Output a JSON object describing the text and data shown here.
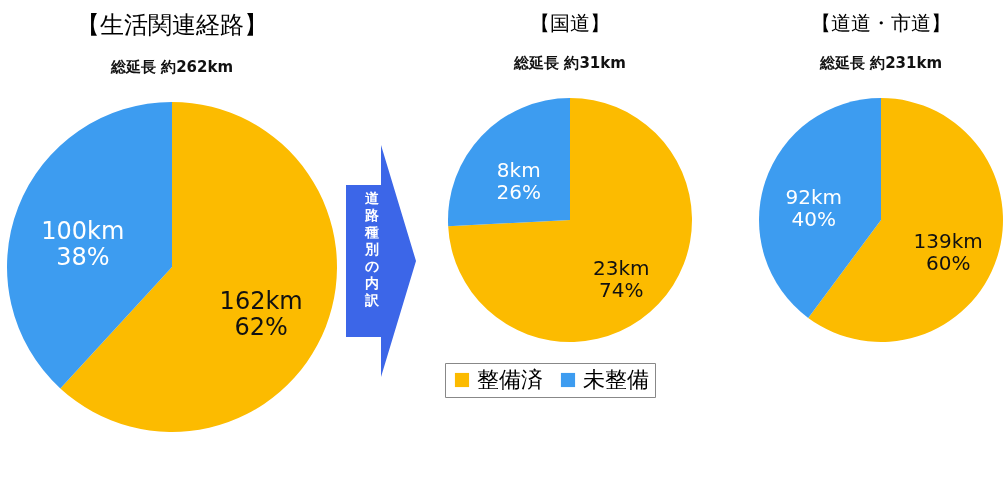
{
  "chart_data": [
    {
      "type": "pie",
      "title": "【生活関連経路】",
      "subtitle": "総延長  約262km",
      "categories": [
        null,
        null
      ],
      "values": [
        162,
        100
      ],
      "colors": [
        "#fcbb00",
        "#3d9cf0"
      ],
      "value_labels": [
        "162km\n62%",
        "100km\n38%"
      ],
      "annotations": [
        "道路種別の内訳"
      ]
    },
    {
      "type": "pie",
      "title": "【国道】",
      "subtitle": "総延長  約31km",
      "categories": [
        "整備済",
        "未整備"
      ],
      "values": [
        23,
        8
      ],
      "colors": [
        "#fcbb00",
        "#3d9cf0"
      ],
      "value_labels": [
        "23km\n74%",
        "8km\n26%"
      ],
      "legend": "bottom"
    },
    {
      "type": "pie",
      "title": "【道道・市道】",
      "subtitle": "総延長 約231km",
      "categories": [
        null,
        null
      ],
      "values": [
        139,
        92
      ],
      "colors": [
        "#fcbb00",
        "#3d9cf0"
      ],
      "value_labels": [
        "139km\n60%",
        "92km\n40%"
      ]
    }
  ]
}
